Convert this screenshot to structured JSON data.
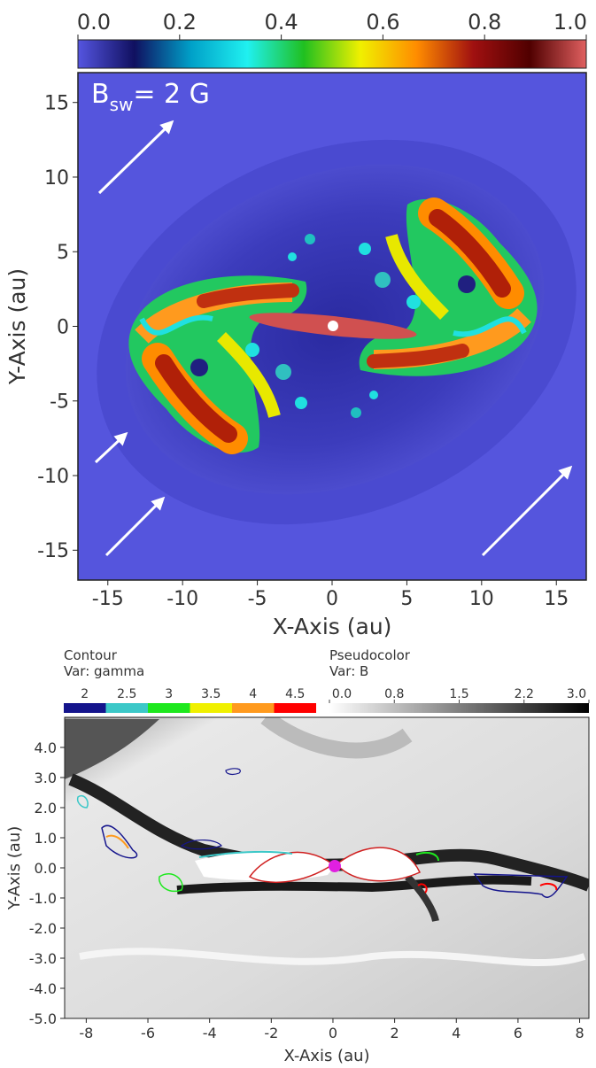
{
  "chart_data": [
    {
      "type": "heatmap",
      "xlabel": "X-Axis (au)",
      "ylabel": "Y-Axis (au)",
      "xlim": [
        -17,
        17
      ],
      "xticks": [
        -15,
        -10,
        -5,
        0,
        5,
        10,
        15
      ],
      "ylim": [
        -17,
        17
      ],
      "yticks": [
        -15,
        -10,
        -5,
        0,
        5,
        10,
        15
      ],
      "annotation": {
        "base": "B",
        "subscript": "sw",
        "text": "= 2 G"
      },
      "colorbar": {
        "lim": [
          0,
          1
        ],
        "ticks": [
          {
            "value": 0,
            "label": "0.0"
          },
          {
            "value": 0.2,
            "label": "0.2"
          },
          {
            "value": 0.4,
            "label": "0.4"
          },
          {
            "value": 0.6,
            "label": "0.6"
          },
          {
            "value": 0.8,
            "label": "0.8"
          },
          {
            "value": 1,
            "label": "1.0"
          }
        ],
        "colors": [
          "#5555e0",
          "#101060",
          "#00a0c8",
          "#20f0f0",
          "#20c020",
          "#f0f000",
          "#ff8c00",
          "#a01010",
          "#500000",
          "#e06060"
        ]
      }
    },
    {
      "type": "heatmap",
      "xlabel": "X-Axis (au)",
      "ylabel": "Y-Axis (au)",
      "xlim": [
        -8.7,
        8.3
      ],
      "xticks": [
        -8,
        -6,
        -4,
        -2,
        0,
        2,
        4,
        6,
        8
      ],
      "ylim": [
        -5,
        5
      ],
      "yticks": [
        {
          "value": 4,
          "label": "4.0"
        },
        {
          "value": 3,
          "label": "3.0"
        },
        {
          "value": 2,
          "label": "2.0"
        },
        {
          "value": 1,
          "label": "1.0"
        },
        {
          "value": 0,
          "label": "0.0"
        },
        {
          "value": -1,
          "label": "-1.0"
        },
        {
          "value": -2,
          "label": "-2.0"
        },
        {
          "value": -3,
          "label": "-3.0"
        },
        {
          "value": -4,
          "label": "-4.0"
        },
        {
          "value": -5,
          "label": "-5.0"
        }
      ],
      "contour_legend": {
        "title": "Contour",
        "variable": "Var: gamma",
        "levels": [
          2,
          2.5,
          3,
          3.5,
          4,
          4.5
        ],
        "colors": [
          "#14148c",
          "#3cc8c8",
          "#1ee81e",
          "#f0f000",
          "#ff9a1e",
          "#ff0000"
        ]
      },
      "pseudocolor_legend": {
        "title": "Pseudocolor",
        "variable": "Var: B",
        "lim": [
          0,
          3
        ],
        "ticks": [
          {
            "value": 0,
            "label": "0.0"
          },
          {
            "value": 0.75,
            "label": "0.8"
          },
          1.5,
          {
            "value": 2.25,
            "label": "2.2"
          },
          {
            "value": 3,
            "label": "3.0"
          }
        ],
        "colors": [
          "#ffffff",
          "#000000"
        ]
      }
    }
  ]
}
